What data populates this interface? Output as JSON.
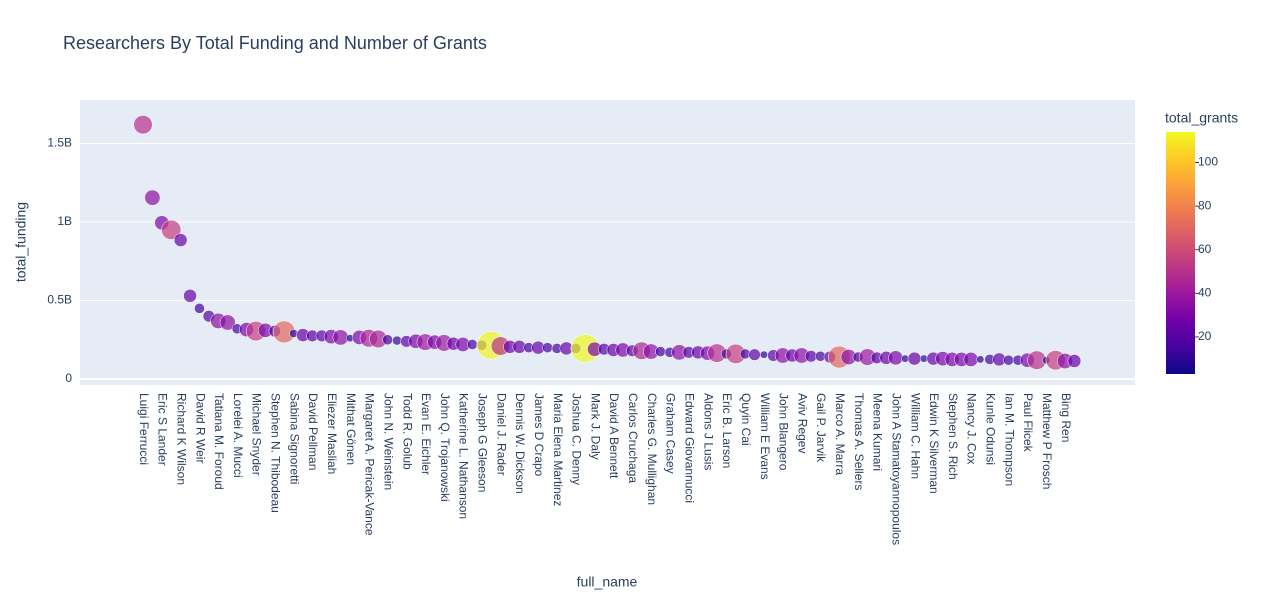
{
  "chart_data": {
    "type": "scatter",
    "title": "Researchers By Total Funding and Number of Grants",
    "x_label": "full_name",
    "y_label": "total_funding",
    "colorbar_title": "total_grants",
    "categories": [
      "Luigi Ferrucci",
      null,
      "Eric S Lander",
      null,
      "Richard K Wilson",
      null,
      "David R Weir",
      null,
      "Tatiana M. Foroud",
      null,
      "Lorelei A. Mucci",
      null,
      "Michael Snyder",
      null,
      "Stephen N. Thibodeau",
      null,
      "Sabina Signoretti",
      null,
      "David Pellman",
      null,
      "Eliezer Masliah",
      null,
      "Mithat Gönen",
      null,
      "Margaret A. Pericak-Vance",
      null,
      "John N. Weinstein",
      null,
      "Todd R. Golub",
      null,
      "Evan E. Eichler",
      null,
      "John Q. Trojanowski",
      null,
      "Katherine L. Nathanson",
      null,
      "Joseph G Gleeson",
      null,
      "Daniel J. Rader",
      null,
      "Dennis W. Dickson",
      null,
      "James D Crapo",
      null,
      "Maria Elena Martinez",
      null,
      "Joshua C. Denny",
      null,
      "Mark J. Daly",
      null,
      "David A Bennett",
      null,
      "Carlos Cruchaga",
      null,
      "Charles G. Mullighan",
      null,
      "Graham Casey",
      null,
      "Edward Giovannucci",
      null,
      "Aldons J Lusis",
      null,
      "Eric B. Larson",
      null,
      "Quyin Cai",
      null,
      "William E Evans",
      null,
      "John Blangero",
      null,
      "Aviv Regev",
      null,
      "Gail P. Jarvik",
      null,
      "Marco A. Marra",
      null,
      "Thomas A. Sellers",
      null,
      "Meena Kumari",
      null,
      "John A Stamatoyannopoulos",
      null,
      "William C. Hahn",
      null,
      "Edwin K Silverman",
      null,
      "Stephen S. Rich",
      null,
      "Nancy J. Cox",
      null,
      "Kunle Odunsi",
      null,
      "Ian M. Thompson",
      null,
      "Paul Flicek",
      null,
      "Matthew P Frosch",
      null,
      "Bing Ren",
      null
    ],
    "values": [
      1620000000,
      1155000000,
      995000000,
      950000000,
      885000000,
      530000000,
      450000000,
      400000000,
      370000000,
      360000000,
      320000000,
      315000000,
      305000000,
      310000000,
      305000000,
      300000000,
      290000000,
      280000000,
      275000000,
      275000000,
      270000000,
      265000000,
      260000000,
      265000000,
      260000000,
      255000000,
      250000000,
      245000000,
      240000000,
      240000000,
      235000000,
      235000000,
      230000000,
      225000000,
      220000000,
      220000000,
      215000000,
      215000000,
      210000000,
      205000000,
      205000000,
      200000000,
      200000000,
      200000000,
      195000000,
      195000000,
      195000000,
      195000000,
      190000000,
      190000000,
      185000000,
      185000000,
      180000000,
      180000000,
      175000000,
      175000000,
      170000000,
      170000000,
      170000000,
      170000000,
      165000000,
      165000000,
      160000000,
      160000000,
      160000000,
      155000000,
      155000000,
      150000000,
      150000000,
      150000000,
      150000000,
      145000000,
      145000000,
      140000000,
      140000000,
      140000000,
      140000000,
      140000000,
      135000000,
      135000000,
      135000000,
      130000000,
      130000000,
      130000000,
      130000000,
      130000000,
      125000000,
      125000000,
      125000000,
      125000000,
      125000000,
      125000000,
      120000000,
      120000000,
      120000000,
      120000000,
      120000000,
      120000000,
      115000000,
      115000000
    ],
    "total_grants": [
      50,
      35,
      30,
      55,
      25,
      25,
      15,
      20,
      35,
      35,
      15,
      30,
      55,
      30,
      20,
      70,
      10,
      25,
      20,
      20,
      30,
      35,
      8,
      30,
      45,
      45,
      15,
      12,
      20,
      30,
      40,
      30,
      40,
      25,
      30,
      15,
      15,
      113,
      50,
      25,
      25,
      15,
      25,
      15,
      15,
      25,
      15,
      114,
      30,
      20,
      25,
      30,
      20,
      45,
      35,
      15,
      15,
      35,
      20,
      25,
      30,
      50,
      15,
      55,
      15,
      20,
      8,
      20,
      35,
      25,
      35,
      20,
      15,
      20,
      70,
      35,
      15,
      40,
      20,
      25,
      30,
      8,
      25,
      8,
      25,
      30,
      30,
      30,
      30,
      8,
      15,
      25,
      15,
      15,
      30,
      50,
      8,
      55,
      35,
      25
    ],
    "ylim": [
      -38000000,
      1777000000
    ],
    "yticks": [
      0,
      {
        "value": 500000000,
        "label": "0.5B"
      },
      {
        "value": 1000000000,
        "label": "1B"
      },
      {
        "value": 1500000000,
        "label": "1.5B"
      }
    ],
    "clim": [
      3,
      114
    ],
    "cticks": [
      20,
      40,
      60,
      80,
      100
    ],
    "colorscale": [
      "#0d0887",
      "#46039f",
      "#7201a8",
      "#9c179e",
      "#bd3786",
      "#d8576b",
      "#ed7953",
      "#fb9f3a",
      "#fdca26",
      "#f0f921"
    ],
    "grid": true
  }
}
